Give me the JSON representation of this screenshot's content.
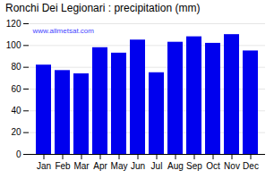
{
  "chart_data": {
    "type": "bar",
    "title": "Ronchi Dei Legionari : precipitation (mm)",
    "categories": [
      "Jan",
      "Feb",
      "Mar",
      "Apr",
      "May",
      "Jun",
      "Jul",
      "Aug",
      "Sep",
      "Oct",
      "Nov",
      "Dec"
    ],
    "values": [
      82,
      77,
      74,
      98,
      93,
      105,
      75,
      103,
      108,
      102,
      110,
      95
    ],
    "color": "#0000ee",
    "ylim": [
      0,
      120
    ],
    "yticks": [
      0,
      20,
      40,
      60,
      80,
      100,
      120
    ],
    "grid": true,
    "annotations": [
      "www.allmetsat.com"
    ]
  }
}
